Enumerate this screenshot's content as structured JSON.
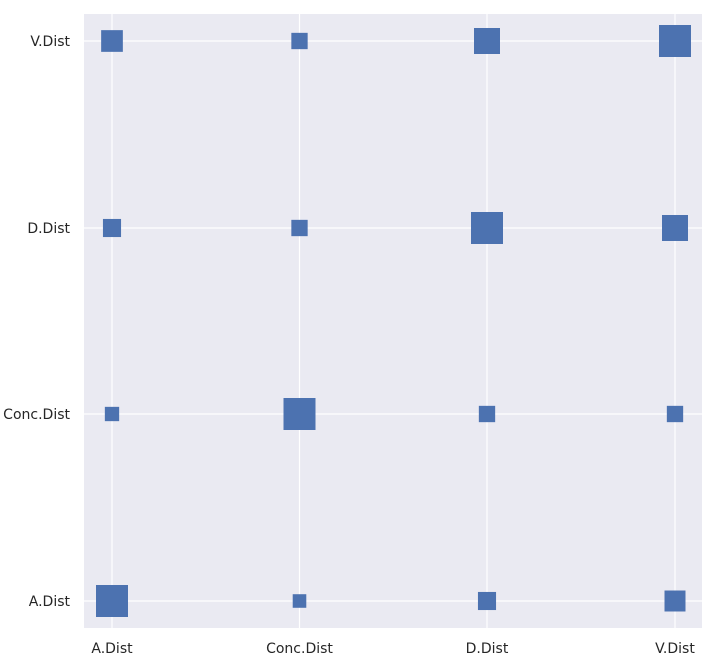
{
  "chart_data": {
    "type": "heatmap",
    "title": "",
    "xlabel": "",
    "ylabel": "",
    "x_categories": [
      "A.Dist",
      "Conc.Dist",
      "D.Dist",
      "V.Dist"
    ],
    "y_categories": [
      "A.Dist",
      "Conc.Dist",
      "D.Dist",
      "V.Dist"
    ],
    "encoding": "square marker size proportional to value (correlation magnitude)",
    "cells": [
      {
        "x": "A.Dist",
        "y": "A.Dist",
        "value": 1.0
      },
      {
        "x": "Conc.Dist",
        "y": "A.Dist",
        "value": 0.18
      },
      {
        "x": "D.Dist",
        "y": "A.Dist",
        "value": 0.32
      },
      {
        "x": "V.Dist",
        "y": "A.Dist",
        "value": 0.43
      },
      {
        "x": "A.Dist",
        "y": "Conc.Dist",
        "value": 0.2
      },
      {
        "x": "Conc.Dist",
        "y": "Conc.Dist",
        "value": 1.0
      },
      {
        "x": "D.Dist",
        "y": "Conc.Dist",
        "value": 0.26
      },
      {
        "x": "V.Dist",
        "y": "Conc.Dist",
        "value": 0.26
      },
      {
        "x": "A.Dist",
        "y": "D.Dist",
        "value": 0.32
      },
      {
        "x": "Conc.Dist",
        "y": "D.Dist",
        "value": 0.26
      },
      {
        "x": "D.Dist",
        "y": "D.Dist",
        "value": 1.0
      },
      {
        "x": "V.Dist",
        "y": "D.Dist",
        "value": 0.66
      },
      {
        "x": "A.Dist",
        "y": "V.Dist",
        "value": 0.46
      },
      {
        "x": "Conc.Dist",
        "y": "V.Dist",
        "value": 0.26
      },
      {
        "x": "D.Dist",
        "y": "V.Dist",
        "value": 0.66
      },
      {
        "x": "V.Dist",
        "y": "V.Dist",
        "value": 1.0
      }
    ],
    "grid": true,
    "legend": "none",
    "colors": {
      "marker": "#4c72b0",
      "background": "#eaeaf2",
      "grid": "#ffffff",
      "text": "#262626"
    }
  }
}
